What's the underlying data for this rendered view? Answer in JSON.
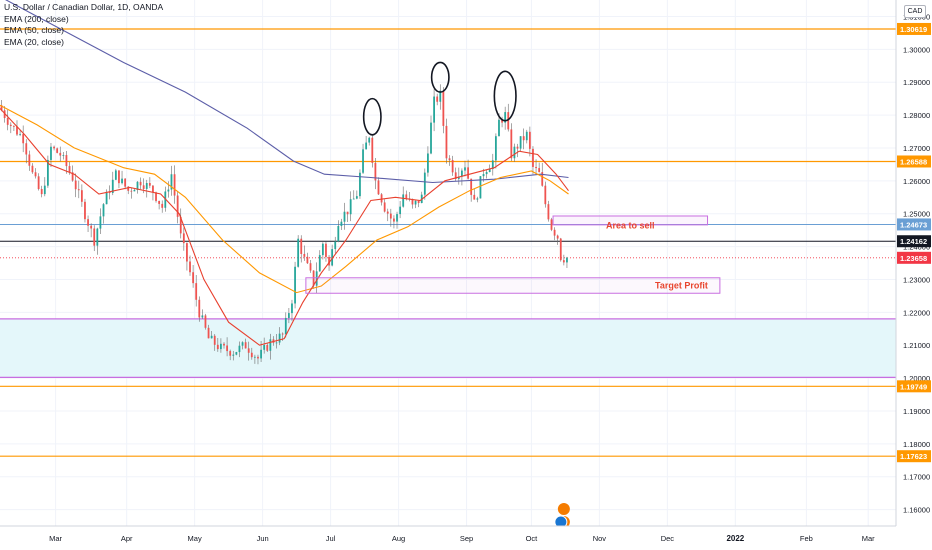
{
  "chart_data": {
    "type": "candlestick",
    "symbol": "U.S. Dollar / Canadian Dollar, 1D, OANDA",
    "currency": "CAD",
    "indicators": [
      "EMA (200, close)",
      "EMA (50, close)",
      "EMA (20, close)"
    ],
    "ylim": [
      1.155,
      1.315
    ],
    "yticks": [
      1.16,
      1.17,
      1.18,
      1.19,
      1.2,
      1.21,
      1.22,
      1.23,
      1.24,
      1.25,
      1.26,
      1.27,
      1.28,
      1.29,
      1.3,
      1.31
    ],
    "xlim": [
      0,
      290
    ],
    "x_ticks": [
      {
        "label": "Mar",
        "x": 18
      },
      {
        "label": "Apr",
        "x": 41
      },
      {
        "label": "May",
        "x": 63
      },
      {
        "label": "Jun",
        "x": 85
      },
      {
        "label": "Jul",
        "x": 107
      },
      {
        "label": "Aug",
        "x": 129
      },
      {
        "label": "Sep",
        "x": 151
      },
      {
        "label": "Oct",
        "x": 172
      },
      {
        "label": "Nov",
        "x": 194
      },
      {
        "label": "Dec",
        "x": 216
      },
      {
        "label": "2022",
        "x": 238,
        "bold": true
      },
      {
        "label": "Feb",
        "x": 261
      },
      {
        "label": "Mar",
        "x": 281
      }
    ],
    "price_labels": [
      {
        "text": "1.30619",
        "value": 1.30619,
        "color": "#ff9800"
      },
      {
        "text": "1.26588",
        "value": 1.26588,
        "color": "#ff9800"
      },
      {
        "text": "1.24673",
        "value": 1.24673,
        "color": "#6a9fd4"
      },
      {
        "text": "1.24162",
        "value": 1.24162,
        "color": "#131722"
      },
      {
        "text": "1.23658",
        "value": 1.23658,
        "color": "#f23645"
      },
      {
        "text": "1.19749",
        "value": 1.19749,
        "color": "#ff9800"
      },
      {
        "text": "1.17623",
        "value": 1.17623,
        "color": "#ff9800"
      }
    ],
    "hlines": [
      {
        "value": 1.30619,
        "color": "#ff9800",
        "width": 1.2
      },
      {
        "value": 1.26588,
        "color": "#ff9800",
        "width": 1.2
      },
      {
        "value": 1.24673,
        "color": "#6a9fd4",
        "width": 1
      },
      {
        "value": 1.24162,
        "color": "#131722",
        "width": 1
      },
      {
        "value": 1.19749,
        "color": "#ff9800",
        "width": 1.2
      },
      {
        "value": 1.17623,
        "color": "#ff9800",
        "width": 1.2
      }
    ],
    "demand_zone": {
      "top": 1.218,
      "bottom": 1.2002,
      "fill": "#e4f7fa",
      "border": "#c86ee0"
    },
    "sell_zone": {
      "label": "Area to sell",
      "x0": 179,
      "x1": 229,
      "top": 1.2493,
      "bottom": 1.2466
    },
    "tp_zone": {
      "label": "Target Profit",
      "x0": 99,
      "x1": 233,
      "top": 1.2305,
      "bottom": 1.2258
    },
    "circles": [
      {
        "x": 120.5,
        "y": 1.2795,
        "rx": 2.8,
        "ry": 0.0055
      },
      {
        "x": 142.5,
        "y": 1.2915,
        "rx": 2.8,
        "ry": 0.0045
      },
      {
        "x": 163.5,
        "y": 1.2858,
        "rx": 3.5,
        "ry": 0.0075
      }
    ],
    "anchors": [
      {
        "x": 0,
        "y": 1.283
      },
      {
        "x": 4,
        "y": 1.277
      },
      {
        "x": 8,
        "y": 1.273
      },
      {
        "x": 11,
        "y": 1.262
      },
      {
        "x": 14,
        "y": 1.255
      },
      {
        "x": 17,
        "y": 1.27
      },
      {
        "x": 20,
        "y": 1.268
      },
      {
        "x": 24,
        "y": 1.261
      },
      {
        "x": 28,
        "y": 1.25
      },
      {
        "x": 31,
        "y": 1.242
      },
      {
        "x": 34,
        "y": 1.253
      },
      {
        "x": 38,
        "y": 1.262
      },
      {
        "x": 42,
        "y": 1.257
      },
      {
        "x": 46,
        "y": 1.26
      },
      {
        "x": 50,
        "y": 1.257
      },
      {
        "x": 53,
        "y": 1.252
      },
      {
        "x": 56,
        "y": 1.262
      },
      {
        "x": 59,
        "y": 1.243
      },
      {
        "x": 62,
        "y": 1.232
      },
      {
        "x": 65,
        "y": 1.22
      },
      {
        "x": 68,
        "y": 1.212
      },
      {
        "x": 72,
        "y": 1.209
      },
      {
        "x": 76,
        "y": 1.208
      },
      {
        "x": 80,
        "y": 1.21
      },
      {
        "x": 84,
        "y": 1.206
      },
      {
        "x": 88,
        "y": 1.211
      },
      {
        "x": 92,
        "y": 1.213
      },
      {
        "x": 95,
        "y": 1.224
      },
      {
        "x": 97,
        "y": 1.242
      },
      {
        "x": 99,
        "y": 1.236
      },
      {
        "x": 102,
        "y": 1.229
      },
      {
        "x": 105,
        "y": 1.241
      },
      {
        "x": 107,
        "y": 1.234
      },
      {
        "x": 110,
        "y": 1.248
      },
      {
        "x": 113,
        "y": 1.251
      },
      {
        "x": 116,
        "y": 1.256
      },
      {
        "x": 118,
        "y": 1.268
      },
      {
        "x": 120,
        "y": 1.274
      },
      {
        "x": 122,
        "y": 1.26
      },
      {
        "x": 125,
        "y": 1.252
      },
      {
        "x": 128,
        "y": 1.247
      },
      {
        "x": 131,
        "y": 1.256
      },
      {
        "x": 134,
        "y": 1.252
      },
      {
        "x": 137,
        "y": 1.255
      },
      {
        "x": 139,
        "y": 1.27
      },
      {
        "x": 141,
        "y": 1.284
      },
      {
        "x": 143,
        "y": 1.286
      },
      {
        "x": 145,
        "y": 1.268
      },
      {
        "x": 148,
        "y": 1.262
      },
      {
        "x": 151,
        "y": 1.265
      },
      {
        "x": 154,
        "y": 1.253
      },
      {
        "x": 157,
        "y": 1.263
      },
      {
        "x": 160,
        "y": 1.266
      },
      {
        "x": 162,
        "y": 1.278
      },
      {
        "x": 164,
        "y": 1.28
      },
      {
        "x": 166,
        "y": 1.268
      },
      {
        "x": 169,
        "y": 1.272
      },
      {
        "x": 171,
        "y": 1.274
      },
      {
        "x": 173,
        "y": 1.264
      },
      {
        "x": 175,
        "y": 1.262
      },
      {
        "x": 177,
        "y": 1.253
      },
      {
        "x": 179,
        "y": 1.246
      },
      {
        "x": 181,
        "y": 1.243
      },
      {
        "x": 182,
        "y": 1.237
      },
      {
        "x": 183,
        "y": 1.2366
      }
    ],
    "ema_series": [
      {
        "name": "EMA (200, close)",
        "color": "#5c5ea8",
        "points": [
          {
            "x": 0,
            "y": 1.316
          },
          {
            "x": 20,
            "y": 1.306
          },
          {
            "x": 40,
            "y": 1.296
          },
          {
            "x": 60,
            "y": 1.287
          },
          {
            "x": 80,
            "y": 1.276
          },
          {
            "x": 95,
            "y": 1.266
          },
          {
            "x": 105,
            "y": 1.262
          },
          {
            "x": 120,
            "y": 1.261
          },
          {
            "x": 140,
            "y": 1.2595
          },
          {
            "x": 160,
            "y": 1.2605
          },
          {
            "x": 175,
            "y": 1.262
          },
          {
            "x": 184,
            "y": 1.261
          }
        ]
      },
      {
        "name": "EMA (50, close)",
        "color": "#ff9800",
        "points": [
          {
            "x": 0,
            "y": 1.283
          },
          {
            "x": 12,
            "y": 1.277
          },
          {
            "x": 24,
            "y": 1.27
          },
          {
            "x": 40,
            "y": 1.264
          },
          {
            "x": 50,
            "y": 1.262
          },
          {
            "x": 60,
            "y": 1.255
          },
          {
            "x": 72,
            "y": 1.242
          },
          {
            "x": 84,
            "y": 1.232
          },
          {
            "x": 96,
            "y": 1.226
          },
          {
            "x": 104,
            "y": 1.228
          },
          {
            "x": 112,
            "y": 1.234
          },
          {
            "x": 122,
            "y": 1.242
          },
          {
            "x": 132,
            "y": 1.246
          },
          {
            "x": 142,
            "y": 1.252
          },
          {
            "x": 152,
            "y": 1.257
          },
          {
            "x": 162,
            "y": 1.261
          },
          {
            "x": 172,
            "y": 1.263
          },
          {
            "x": 178,
            "y": 1.26
          },
          {
            "x": 184,
            "y": 1.256
          }
        ]
      },
      {
        "name": "EMA (20, close)",
        "color": "#e8402e",
        "points": [
          {
            "x": 0,
            "y": 1.282
          },
          {
            "x": 8,
            "y": 1.274
          },
          {
            "x": 16,
            "y": 1.265
          },
          {
            "x": 24,
            "y": 1.262
          },
          {
            "x": 32,
            "y": 1.256
          },
          {
            "x": 42,
            "y": 1.258
          },
          {
            "x": 52,
            "y": 1.256
          },
          {
            "x": 58,
            "y": 1.25
          },
          {
            "x": 66,
            "y": 1.23
          },
          {
            "x": 74,
            "y": 1.217
          },
          {
            "x": 84,
            "y": 1.21
          },
          {
            "x": 92,
            "y": 1.212
          },
          {
            "x": 98,
            "y": 1.223
          },
          {
            "x": 104,
            "y": 1.232
          },
          {
            "x": 112,
            "y": 1.242
          },
          {
            "x": 120,
            "y": 1.254
          },
          {
            "x": 128,
            "y": 1.255
          },
          {
            "x": 136,
            "y": 1.254
          },
          {
            "x": 144,
            "y": 1.26
          },
          {
            "x": 152,
            "y": 1.262
          },
          {
            "x": 160,
            "y": 1.264
          },
          {
            "x": 168,
            "y": 1.269
          },
          {
            "x": 174,
            "y": 1.268
          },
          {
            "x": 180,
            "y": 1.262
          },
          {
            "x": 184,
            "y": 1.257
          }
        ]
      }
    ]
  }
}
